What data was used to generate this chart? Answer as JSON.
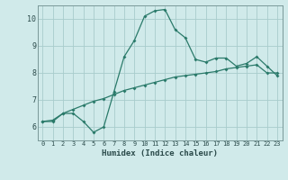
{
  "xlabel": "Humidex (Indice chaleur)",
  "x_values": [
    0,
    1,
    2,
    3,
    4,
    5,
    6,
    7,
    8,
    9,
    10,
    11,
    12,
    13,
    14,
    15,
    16,
    17,
    18,
    19,
    20,
    21,
    22,
    23
  ],
  "line1_y": [
    6.2,
    6.2,
    6.5,
    6.5,
    6.2,
    5.8,
    6.0,
    7.3,
    8.6,
    9.2,
    10.1,
    10.3,
    10.35,
    9.6,
    9.3,
    8.5,
    8.4,
    8.55,
    8.55,
    8.25,
    8.35,
    8.6,
    8.25,
    7.9
  ],
  "line2_y": [
    6.2,
    6.25,
    6.5,
    6.65,
    6.8,
    6.95,
    7.05,
    7.2,
    7.35,
    7.45,
    7.55,
    7.65,
    7.75,
    7.85,
    7.9,
    7.95,
    8.0,
    8.05,
    8.15,
    8.2,
    8.25,
    8.3,
    8.0,
    8.0
  ],
  "line_color": "#2a7a6a",
  "bg_color": "#d0eaea",
  "grid_color": "#a8cccc",
  "ylim": [
    5.5,
    10.5
  ],
  "yticks": [
    6,
    7,
    8,
    9,
    10
  ]
}
